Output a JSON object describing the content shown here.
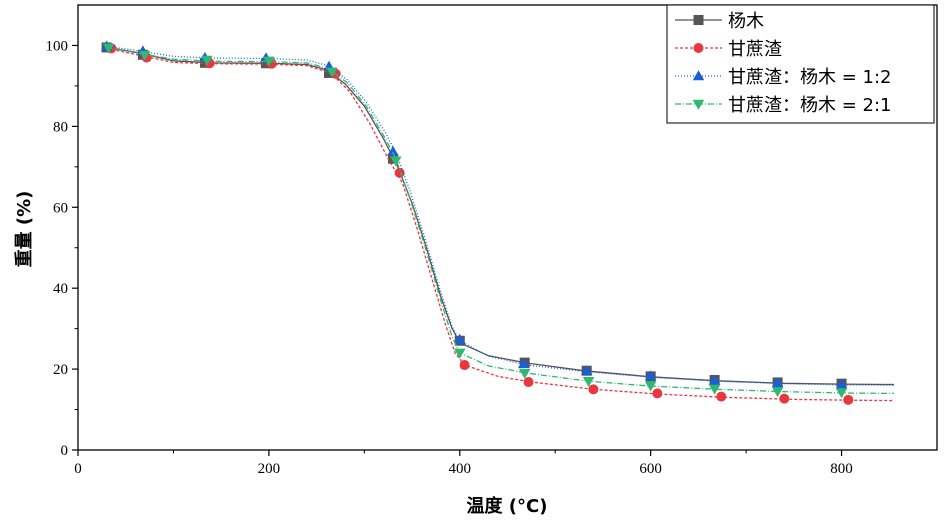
{
  "chart_data": {
    "type": "line",
    "title": "",
    "xlabel": "温度 (°C)",
    "ylabel": "重量 (%)",
    "xlim": [
      0,
      900
    ],
    "ylim": [
      0,
      110
    ],
    "xticks": [
      0,
      200,
      400,
      600,
      800
    ],
    "yticks": [
      0,
      20,
      40,
      60,
      80,
      100
    ],
    "grid": false,
    "legend_position": "top-right",
    "series": [
      {
        "name": "杨木",
        "color": "#555555",
        "marker": "square",
        "dash": "solid",
        "curve": [
          [
            30,
            99.6
          ],
          [
            60,
            98.3
          ],
          [
            100,
            96.2
          ],
          [
            140,
            95.7
          ],
          [
            200,
            95.6
          ],
          [
            240,
            95.3
          ],
          [
            260,
            94.0
          ],
          [
            280,
            90.5
          ],
          [
            300,
            85.0
          ],
          [
            320,
            77.0
          ],
          [
            335,
            70.0
          ],
          [
            350,
            61.0
          ],
          [
            365,
            50.0
          ],
          [
            380,
            38.0
          ],
          [
            392,
            30.0
          ],
          [
            400,
            26.5
          ],
          [
            430,
            23.3
          ],
          [
            470,
            21.5
          ],
          [
            530,
            19.6
          ],
          [
            600,
            18.1
          ],
          [
            670,
            17.1
          ],
          [
            740,
            16.5
          ],
          [
            800,
            16.3
          ],
          [
            855,
            16.2
          ]
        ],
        "markers": [
          [
            30,
            99.5
          ],
          [
            68,
            97.7
          ],
          [
            133,
            95.7
          ],
          [
            197,
            95.6
          ],
          [
            263,
            93.2
          ],
          [
            330,
            72.0
          ],
          [
            400,
            27.0
          ],
          [
            468,
            21.6
          ],
          [
            533,
            19.6
          ],
          [
            600,
            18.2
          ],
          [
            667,
            17.3
          ],
          [
            733,
            16.7
          ],
          [
            800,
            16.4
          ]
        ]
      },
      {
        "name": "甘蔗渣",
        "color": "#e8373e",
        "marker": "circle",
        "dash": "3,2",
        "curve": [
          [
            30,
            99.3
          ],
          [
            60,
            97.8
          ],
          [
            100,
            95.8
          ],
          [
            140,
            95.5
          ],
          [
            200,
            95.4
          ],
          [
            240,
            95.0
          ],
          [
            265,
            93.2
          ],
          [
            285,
            88.5
          ],
          [
            305,
            81.0
          ],
          [
            325,
            72.0
          ],
          [
            340,
            66.0
          ],
          [
            355,
            55.0
          ],
          [
            370,
            43.0
          ],
          [
            385,
            31.0
          ],
          [
            395,
            24.0
          ],
          [
            405,
            21.0
          ],
          [
            440,
            18.2
          ],
          [
            475,
            16.8
          ],
          [
            540,
            15.0
          ],
          [
            610,
            13.8
          ],
          [
            680,
            13.0
          ],
          [
            750,
            12.5
          ],
          [
            810,
            12.3
          ],
          [
            855,
            12.2
          ]
        ],
        "markers": [
          [
            35,
            99.3
          ],
          [
            72,
            97.0
          ],
          [
            138,
            95.6
          ],
          [
            203,
            95.5
          ],
          [
            270,
            93.0
          ],
          [
            337,
            68.5
          ],
          [
            405,
            21.0
          ],
          [
            472,
            16.8
          ],
          [
            540,
            15.0
          ],
          [
            607,
            14.0
          ],
          [
            674,
            13.2
          ],
          [
            740,
            12.7
          ],
          [
            807,
            12.4
          ]
        ]
      },
      {
        "name": "甘蔗渣：杨木 = 1:2",
        "color": "#1a5fd6",
        "marker": "triangle-up",
        "dash": "1,2",
        "curve": [
          [
            30,
            99.8
          ],
          [
            60,
            98.8
          ],
          [
            100,
            97.3
          ],
          [
            140,
            96.9
          ],
          [
            200,
            96.8
          ],
          [
            240,
            96.4
          ],
          [
            262,
            95.0
          ],
          [
            282,
            91.5
          ],
          [
            302,
            86.0
          ],
          [
            322,
            78.5
          ],
          [
            333,
            73.5
          ],
          [
            348,
            64.0
          ],
          [
            364,
            52.0
          ],
          [
            380,
            39.0
          ],
          [
            392,
            30.5
          ],
          [
            400,
            27.0
          ],
          [
            430,
            23.2
          ],
          [
            470,
            21.0
          ],
          [
            535,
            19.3
          ],
          [
            600,
            18.0
          ],
          [
            670,
            17.0
          ],
          [
            740,
            16.4
          ],
          [
            800,
            16.1
          ],
          [
            855,
            16.0
          ]
        ],
        "markers": [
          [
            30,
            99.8
          ],
          [
            68,
            98.6
          ],
          [
            133,
            97.0
          ],
          [
            197,
            96.9
          ],
          [
            263,
            94.8
          ],
          [
            330,
            73.8
          ],
          [
            400,
            27.3
          ],
          [
            467,
            21.3
          ],
          [
            533,
            19.6
          ],
          [
            600,
            18.3
          ],
          [
            667,
            17.2
          ],
          [
            733,
            16.6
          ],
          [
            800,
            16.2
          ]
        ]
      },
      {
        "name": "甘蔗渣：杨木 = 2:1",
        "color": "#2eb872",
        "marker": "triangle-down",
        "dash": "6,2,1,2",
        "curve": [
          [
            30,
            99.5
          ],
          [
            60,
            98.2
          ],
          [
            100,
            96.6
          ],
          [
            140,
            96.1
          ],
          [
            200,
            96.0
          ],
          [
            240,
            95.7
          ],
          [
            262,
            94.3
          ],
          [
            282,
            90.8
          ],
          [
            302,
            85.0
          ],
          [
            322,
            77.0
          ],
          [
            333,
            72.0
          ],
          [
            348,
            62.0
          ],
          [
            364,
            50.0
          ],
          [
            380,
            37.0
          ],
          [
            392,
            28.0
          ],
          [
            400,
            24.0
          ],
          [
            430,
            20.8
          ],
          [
            470,
            19.0
          ],
          [
            535,
            17.0
          ],
          [
            600,
            15.8
          ],
          [
            670,
            15.0
          ],
          [
            740,
            14.4
          ],
          [
            800,
            14.1
          ],
          [
            855,
            14.0
          ]
        ],
        "markers": [
          [
            32,
            99.4
          ],
          [
            70,
            97.6
          ],
          [
            135,
            96.4
          ],
          [
            200,
            96.2
          ],
          [
            266,
            93.5
          ],
          [
            333,
            71.5
          ],
          [
            400,
            24.0
          ],
          [
            468,
            19.0
          ],
          [
            535,
            17.0
          ],
          [
            600,
            15.9
          ],
          [
            667,
            15.1
          ],
          [
            733,
            14.5
          ],
          [
            800,
            14.2
          ]
        ]
      }
    ]
  }
}
